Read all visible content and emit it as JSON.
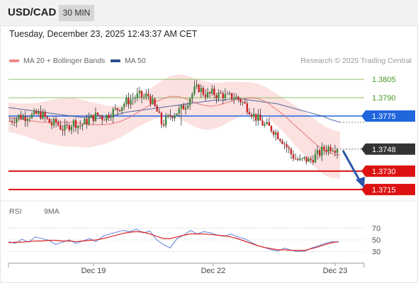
{
  "header": {
    "pair": "USD/CAD",
    "timeframe": "30 MIN"
  },
  "datetime": "Tuesday, December 23, 2025 12:43:37 AM CET",
  "legend": {
    "bb_label": "MA 20 + Bollinger Bands",
    "ma50_label": "MA 50",
    "credit": "Research © 2025 Trading Central"
  },
  "rsi_legend": {
    "rsi_label": "RSI",
    "ma_label": "9MA"
  },
  "colors": {
    "bb": "#f08a8a",
    "ma50": "#2c4f8c",
    "resistance": "#8fc26a",
    "pivot": "#2266dd",
    "support": "#dd1111",
    "last": "#333333",
    "rsi": "#5b7fd6",
    "rsi_ma": "#dd1111",
    "candle_up": "#3c8a3c",
    "candle_down": "#cc2222"
  },
  "chart_data": [
    {
      "type": "candlestick",
      "title": "USD/CAD 30 MIN",
      "x_tick_labels": [
        "Dec 19",
        "Dec 22",
        "Dec 23"
      ],
      "ylim": [
        1.3708,
        1.3812
      ],
      "levels": [
        {
          "label": "1.3805",
          "value": 1.3805,
          "kind": "resistance"
        },
        {
          "label": "1.3790",
          "value": 1.379,
          "kind": "resistance"
        },
        {
          "label": "1.3775",
          "value": 1.3775,
          "kind": "pivot"
        },
        {
          "label": "1.3748",
          "value": 1.3748,
          "kind": "last"
        },
        {
          "label": "1.3730",
          "value": 1.373,
          "kind": "support"
        },
        {
          "label": "1.3715",
          "value": 1.3715,
          "kind": "support"
        }
      ],
      "price_path": [
        1.3771,
        1.3773,
        1.3775,
        1.3774,
        1.3776,
        1.3775,
        1.3777,
        1.3776,
        1.3772,
        1.3768,
        1.377,
        1.3766,
        1.3764,
        1.3768,
        1.377,
        1.3767,
        1.3769,
        1.3772,
        1.3774,
        1.3776,
        1.3774,
        1.3775,
        1.3778,
        1.378,
        1.3783,
        1.3786,
        1.3788,
        1.379,
        1.3792,
        1.379,
        1.3792,
        1.3785,
        1.3778,
        1.3768,
        1.3772,
        1.3776,
        1.3778,
        1.378,
        1.3784,
        1.379,
        1.3796,
        1.3798,
        1.3794,
        1.3792,
        1.3794,
        1.3792,
        1.3793,
        1.379,
        1.3791,
        1.379,
        1.3788,
        1.3784,
        1.378,
        1.3775,
        1.3772,
        1.3768,
        1.3766,
        1.3764,
        1.376,
        1.3756,
        1.375,
        1.3744,
        1.374,
        1.3738,
        1.374,
        1.3738,
        1.3742,
        1.3744,
        1.3748,
        1.3749,
        1.375,
        1.3748
      ],
      "ma20_path": [
        1.3774,
        1.3773,
        1.3772,
        1.3771,
        1.377,
        1.377,
        1.377,
        1.377,
        1.377,
        1.3769,
        1.3768,
        1.3768,
        1.3768,
        1.3769,
        1.3771,
        1.3774,
        1.3778,
        1.3782,
        1.3786,
        1.3789,
        1.3791,
        1.3791,
        1.3789,
        1.3786,
        1.3784,
        1.3783,
        1.3784,
        1.3786,
        1.3788,
        1.3789,
        1.379,
        1.3789,
        1.3786,
        1.3781,
        1.3776,
        1.377,
        1.3764,
        1.3758,
        1.3752,
        1.3747,
        1.3744,
        1.3743
      ],
      "ma50_path": [
        1.3782,
        1.3781,
        1.378,
        1.3779,
        1.3778,
        1.3777,
        1.3776,
        1.3775,
        1.3774,
        1.3774,
        1.3773,
        1.3774,
        1.3776,
        1.3778,
        1.3779,
        1.378,
        1.3781,
        1.3782,
        1.3783,
        1.3784,
        1.3785,
        1.3786,
        1.3787,
        1.3788,
        1.3788,
        1.3789,
        1.3789,
        1.3788,
        1.3787,
        1.3786,
        1.3785,
        1.3783,
        1.3781,
        1.3779,
        1.3777,
        1.3775,
        1.3772,
        1.377
      ],
      "forecast": {
        "from": 1.3748,
        "to": 1.3715
      }
    },
    {
      "type": "line",
      "title": "RSI",
      "y_tick_labels": [
        "70",
        "50",
        "30"
      ],
      "ylim": [
        15,
        85
      ],
      "series": [
        {
          "name": "RSI",
          "values": [
            47,
            44,
            51,
            46,
            55,
            52,
            49,
            42,
            46,
            50,
            44,
            48,
            52,
            47,
            56,
            60,
            63,
            66,
            64,
            68,
            62,
            65,
            50,
            42,
            36,
            52,
            58,
            66,
            60,
            64,
            62,
            58,
            56,
            60,
            55,
            52,
            46,
            40,
            37,
            33,
            31,
            36,
            32,
            30,
            31,
            36,
            40,
            44,
            47,
            46
          ]
        },
        {
          "name": "9MA",
          "values": [
            45,
            46,
            46,
            47,
            48,
            48,
            49,
            49,
            48,
            48,
            47,
            48,
            49,
            50,
            52,
            55,
            58,
            61,
            63,
            64,
            63,
            60,
            56,
            52,
            52,
            55,
            58,
            60,
            60,
            60,
            59,
            58,
            57,
            55,
            52,
            48,
            44,
            40,
            37,
            35,
            33,
            33,
            32,
            32,
            32,
            35,
            38,
            42,
            45,
            47
          ]
        }
      ]
    }
  ]
}
